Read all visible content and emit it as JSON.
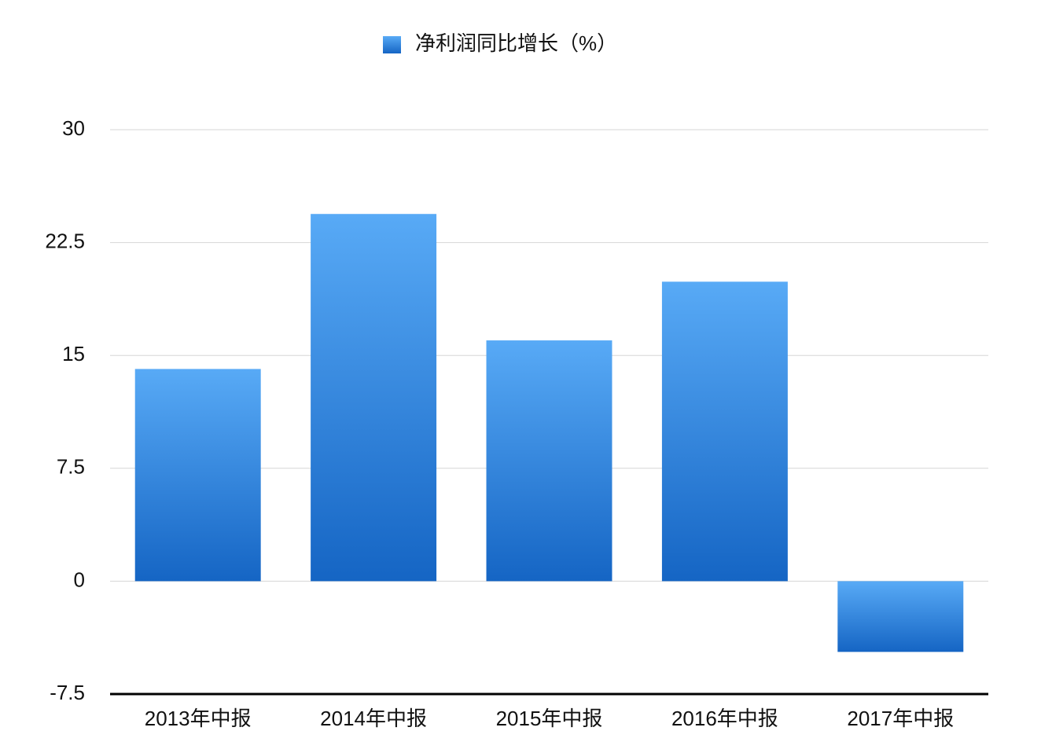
{
  "chart_data": {
    "type": "bar",
    "categories": [
      "2013年中报",
      "2014年中报",
      "2015年中报",
      "2016年中报",
      "2017年中报"
    ],
    "series": [
      {
        "name": "净利润同比增长（%）",
        "color": [
          "#58aaf6",
          "#1565c4"
        ],
        "values": [
          14.1,
          24.4,
          16.0,
          19.9,
          -4.7
        ]
      }
    ],
    "ylim": [
      -7.5,
      30
    ],
    "yticks": [
      -7.5,
      0,
      7.5,
      15,
      22.5,
      30
    ],
    "grid": true,
    "legend": "top"
  }
}
